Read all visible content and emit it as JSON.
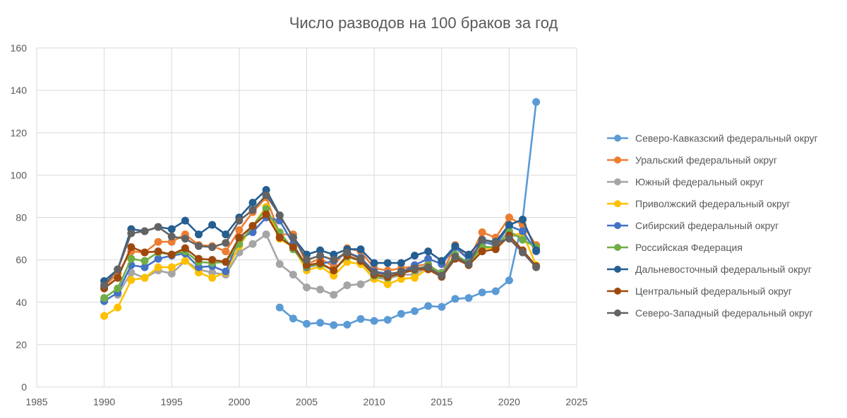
{
  "chart_data": {
    "type": "line",
    "title": "Число разводов на 100 браков за год",
    "xlabel": "",
    "ylabel": "",
    "xlim": [
      1985,
      2025
    ],
    "ylim": [
      0,
      160
    ],
    "x_ticks": [
      1985,
      1990,
      1995,
      2000,
      2005,
      2010,
      2015,
      2020,
      2025
    ],
    "y_ticks": [
      0,
      20,
      40,
      60,
      80,
      100,
      120,
      140,
      160
    ],
    "grid": true,
    "legend_position": "right",
    "x": [
      1990,
      1991,
      1992,
      1993,
      1994,
      1995,
      1996,
      1997,
      1998,
      1999,
      2000,
      2001,
      2002,
      2003,
      2004,
      2005,
      2006,
      2007,
      2008,
      2009,
      2010,
      2011,
      2012,
      2013,
      2014,
      2015,
      2016,
      2017,
      2018,
      2019,
      2020,
      2021,
      2022
    ],
    "series": [
      {
        "name": "Северо-Кавказский федеральный округ",
        "color": "#5b9bd5",
        "values": [
          null,
          null,
          null,
          null,
          null,
          null,
          null,
          null,
          null,
          null,
          null,
          null,
          null,
          37.5,
          32.3,
          29.8,
          30.3,
          29.2,
          29.4,
          32.1,
          31.2,
          31.7,
          34.5,
          35.8,
          38.2,
          37.8,
          41.6,
          42.0,
          44.6,
          45.2,
          50.3,
          79.0,
          134.5
        ]
      },
      {
        "name": "Уральский федеральный округ",
        "color": "#ed7d31",
        "values": [
          47.5,
          53.5,
          64.0,
          63.5,
          68.5,
          68.5,
          72.0,
          67.0,
          66.5,
          64.0,
          74.0,
          82.5,
          89.5,
          72.0,
          72.0,
          58.0,
          60.5,
          57.0,
          65.5,
          64.0,
          56.0,
          55.0,
          56.0,
          57.0,
          58.0,
          53.0,
          67.0,
          60.0,
          73.0,
          70.5,
          80.0,
          76.5,
          67.0
        ]
      },
      {
        "name": "Южный федеральный округ",
        "color": "#a5a5a5",
        "values": [
          null,
          43.5,
          54.0,
          51.5,
          55.0,
          53.5,
          59.5,
          55.5,
          54.0,
          53.0,
          63.5,
          67.5,
          72.0,
          58.0,
          53.0,
          47.0,
          46.0,
          43.5,
          48.0,
          48.5,
          51.5,
          51.0,
          53.0,
          53.0,
          57.0,
          54.0,
          61.0,
          59.0,
          66.5,
          65.5,
          71.0,
          72.0,
          65.5
        ]
      },
      {
        "name": "Приволжский федеральный округ",
        "color": "#ffc000",
        "values": [
          33.5,
          37.5,
          50.5,
          51.5,
          56.5,
          56.5,
          59.5,
          54.0,
          51.5,
          54.0,
          66.5,
          76.0,
          85.0,
          70.0,
          66.0,
          55.0,
          57.0,
          52.5,
          59.0,
          58.0,
          51.0,
          48.5,
          51.0,
          51.5,
          56.0,
          52.5,
          61.0,
          57.5,
          65.5,
          65.5,
          71.5,
          72.5,
          57.5
        ]
      },
      {
        "name": "Сибирский федеральный округ",
        "color": "#4472c4",
        "values": [
          40.5,
          44.5,
          57.5,
          56.5,
          60.5,
          62.0,
          63.0,
          56.5,
          57.0,
          54.5,
          70.0,
          73.0,
          80.0,
          78.5,
          67.5,
          56.5,
          58.0,
          59.5,
          63.5,
          61.0,
          54.5,
          53.5,
          54.0,
          57.5,
          60.5,
          58.0,
          66.0,
          60.0,
          68.5,
          67.0,
          76.0,
          73.5,
          64.0
        ]
      },
      {
        "name": "Российская Федерация",
        "color": "#70ad47",
        "values": [
          42.0,
          46.5,
          60.5,
          59.5,
          63.5,
          62.5,
          64.0,
          59.0,
          58.5,
          59.0,
          67.5,
          76.0,
          84.0,
          73.0,
          65.0,
          57.0,
          58.0,
          55.0,
          61.5,
          59.5,
          52.5,
          51.5,
          54.0,
          55.0,
          57.5,
          53.5,
          62.5,
          58.5,
          66.0,
          66.0,
          73.5,
          69.5,
          66.0
        ]
      },
      {
        "name": "Дальневосточный федеральный округ",
        "color": "#255e91",
        "values": [
          50.0,
          55.5,
          74.5,
          73.5,
          75.5,
          74.5,
          78.5,
          72.0,
          76.5,
          72.0,
          80.0,
          87.0,
          93.0,
          81.0,
          70.5,
          62.5,
          64.5,
          62.5,
          65.0,
          65.0,
          58.5,
          58.5,
          58.5,
          62.0,
          64.0,
          59.5,
          66.5,
          62.5,
          69.5,
          68.5,
          76.5,
          79.0,
          64.5
        ]
      },
      {
        "name": "Центральный федеральный округ",
        "color": "#9e480e",
        "values": [
          46.5,
          51.5,
          66.0,
          63.5,
          64.0,
          62.5,
          65.5,
          60.5,
          60.0,
          59.0,
          70.5,
          76.0,
          81.5,
          70.5,
          66.0,
          57.5,
          58.5,
          55.0,
          62.0,
          59.5,
          53.0,
          52.0,
          53.5,
          55.5,
          55.5,
          52.0,
          60.5,
          57.5,
          64.0,
          65.0,
          71.5,
          64.5,
          57.0
        ]
      },
      {
        "name": "Северо-Западный федеральный округ",
        "color": "#636363",
        "values": [
          48.0,
          55.5,
          72.5,
          73.5,
          75.5,
          71.0,
          70.0,
          66.5,
          66.0,
          68.0,
          78.5,
          83.5,
          90.5,
          81.0,
          70.5,
          60.0,
          62.0,
          60.0,
          63.5,
          60.5,
          54.0,
          53.0,
          54.5,
          56.0,
          56.5,
          52.5,
          61.5,
          58.0,
          69.5,
          68.0,
          70.0,
          63.5,
          56.5
        ]
      }
    ]
  }
}
